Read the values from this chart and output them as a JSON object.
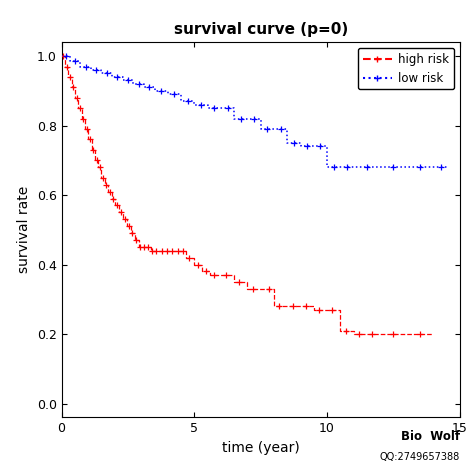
{
  "title": "survival curve (p=0)",
  "xlabel": "time (year)",
  "ylabel": "survival rate",
  "xlim": [
    0,
    15
  ],
  "ylim": [
    -0.04,
    1.04
  ],
  "xticks": [
    0,
    5,
    10,
    15
  ],
  "yticks": [
    0.0,
    0.2,
    0.4,
    0.6,
    0.8,
    1.0
  ],
  "high_risk_color": "#FF0000",
  "low_risk_color": "#0000FF",
  "bg_color": "#FFFFFF",
  "watermark1": "Bio  Wolf",
  "watermark2": "QQ:2749657388",
  "high_risk_x": [
    0,
    0.13,
    0.25,
    0.38,
    0.5,
    0.63,
    0.75,
    0.88,
    1.0,
    1.13,
    1.25,
    1.38,
    1.5,
    1.63,
    1.75,
    1.88,
    2.0,
    2.15,
    2.3,
    2.45,
    2.6,
    2.75,
    2.9,
    3.05,
    3.2,
    3.35,
    3.5,
    3.7,
    3.9,
    4.1,
    4.3,
    4.5,
    4.7,
    5.0,
    5.3,
    5.6,
    6.0,
    6.5,
    7.0,
    7.5,
    8.0,
    8.5,
    9.0,
    9.5,
    10.0,
    10.5,
    11.0,
    11.5,
    12.0,
    13.0,
    14.0
  ],
  "high_risk_y": [
    1.0,
    0.97,
    0.94,
    0.91,
    0.88,
    0.85,
    0.82,
    0.79,
    0.76,
    0.73,
    0.7,
    0.68,
    0.65,
    0.63,
    0.61,
    0.59,
    0.57,
    0.55,
    0.53,
    0.51,
    0.49,
    0.47,
    0.45,
    0.45,
    0.45,
    0.44,
    0.44,
    0.44,
    0.44,
    0.44,
    0.44,
    0.44,
    0.42,
    0.4,
    0.38,
    0.37,
    0.37,
    0.35,
    0.33,
    0.33,
    0.28,
    0.28,
    0.28,
    0.27,
    0.27,
    0.21,
    0.2,
    0.2,
    0.2,
    0.2,
    0.2
  ],
  "low_risk_x": [
    0,
    0.3,
    0.7,
    1.1,
    1.5,
    1.9,
    2.3,
    2.7,
    3.1,
    3.5,
    4.0,
    4.5,
    5.0,
    5.5,
    6.0,
    6.5,
    7.0,
    7.5,
    8.0,
    8.5,
    9.0,
    9.5,
    10.0,
    10.5,
    11.0,
    12.0,
    13.0,
    14.0,
    14.5
  ],
  "low_risk_y": [
    1.0,
    0.985,
    0.97,
    0.96,
    0.95,
    0.94,
    0.93,
    0.92,
    0.91,
    0.9,
    0.89,
    0.87,
    0.86,
    0.85,
    0.85,
    0.82,
    0.82,
    0.79,
    0.79,
    0.75,
    0.74,
    0.74,
    0.68,
    0.68,
    0.68,
    0.68,
    0.68,
    0.68,
    0.68
  ],
  "high_censor_x": [
    0.07,
    0.19,
    0.32,
    0.44,
    0.57,
    0.69,
    0.82,
    0.94,
    1.06,
    1.19,
    1.32,
    1.44,
    1.57,
    1.69,
    1.82,
    1.94,
    2.07,
    2.22,
    2.37,
    2.52,
    2.67,
    2.82,
    2.97,
    3.12,
    3.27,
    3.42,
    3.57,
    3.77,
    3.97,
    4.17,
    4.37,
    4.57,
    4.8,
    5.15,
    5.45,
    5.75,
    6.2,
    6.7,
    7.2,
    7.8,
    8.2,
    8.7,
    9.2,
    9.7,
    10.2,
    10.7,
    11.2,
    11.7,
    12.5,
    13.5
  ],
  "low_censor_x": [
    0.15,
    0.5,
    0.9,
    1.3,
    1.7,
    2.1,
    2.5,
    2.9,
    3.3,
    3.75,
    4.25,
    4.75,
    5.25,
    5.75,
    6.25,
    6.75,
    7.25,
    7.75,
    8.25,
    8.75,
    9.25,
    9.75,
    10.25,
    10.75,
    11.5,
    12.5,
    13.5,
    14.3
  ]
}
